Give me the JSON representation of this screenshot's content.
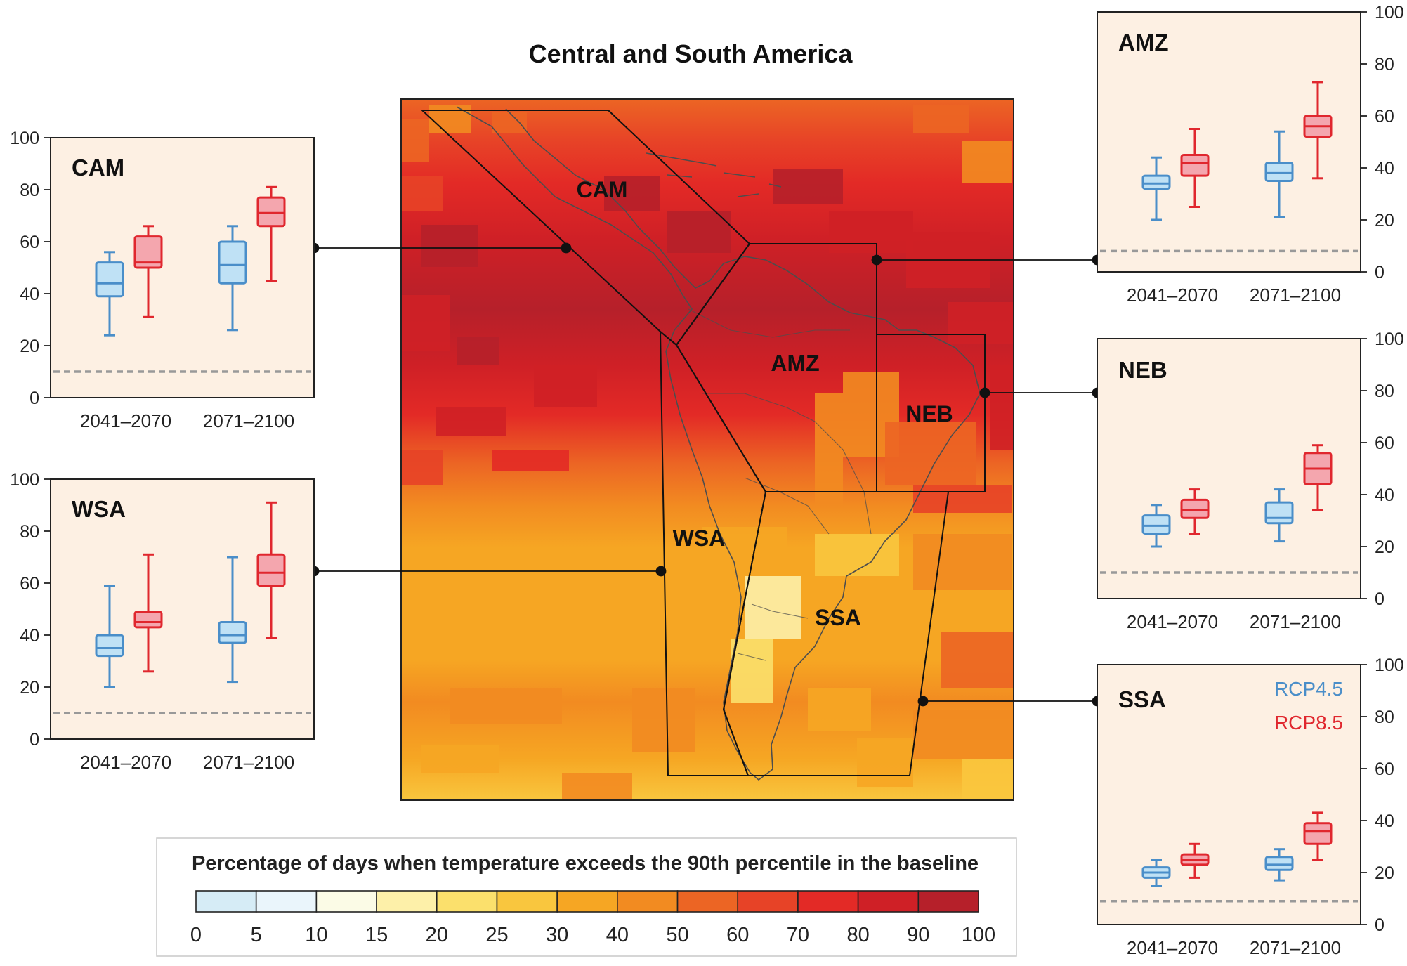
{
  "title": "Central and South America",
  "colorbar": {
    "title": "Percentage of days when temperature exceeds the 90th percentile in the baseline",
    "ticks": [
      "0",
      "5",
      "10",
      "15",
      "20",
      "25",
      "30",
      "40",
      "50",
      "60",
      "70",
      "80",
      "90",
      "100"
    ],
    "colors": [
      "#d6ecf6",
      "#eaf5fb",
      "#fbfbe6",
      "#fdf0a9",
      "#fbe06c",
      "#f9c63e",
      "#f6a623",
      "#f28b21",
      "#ec6524",
      "#e74327",
      "#e32a26",
      "#cf2026",
      "#b6202a"
    ]
  },
  "legend": {
    "rcp45": "RCP4.5",
    "rcp85": "RCP8.5"
  },
  "colors": {
    "rcp45": "#4a8ec9",
    "rcp45_fill": "#bfe1f5",
    "rcp85": "#e0272e",
    "rcp85_fill": "#f4a6ae",
    "panel_bg": "#fdf0e3",
    "baseline": "#999999"
  },
  "chart_data": [
    {
      "type": "box",
      "region": "CAM",
      "categories": [
        "2041–2070",
        "2071–2100"
      ],
      "ylim": [
        0,
        100
      ],
      "yticks": [
        "0",
        "20",
        "40",
        "60",
        "80",
        "100"
      ],
      "baseline": 10,
      "series": [
        {
          "name": "RCP4.5",
          "boxes": [
            {
              "min": 24,
              "q1": 39,
              "median": 44,
              "q3": 52,
              "max": 56
            },
            {
              "min": 26,
              "q1": 44,
              "median": 51,
              "q3": 60,
              "max": 66
            }
          ]
        },
        {
          "name": "RCP8.5",
          "boxes": [
            {
              "min": 31,
              "q1": 50,
              "median": 52,
              "q3": 62,
              "max": 66
            },
            {
              "min": 45,
              "q1": 66,
              "median": 71,
              "q3": 77,
              "max": 81
            }
          ]
        }
      ]
    },
    {
      "type": "box",
      "region": "WSA",
      "categories": [
        "2041–2070",
        "2071–2100"
      ],
      "ylim": [
        0,
        100
      ],
      "yticks": [
        "0",
        "20",
        "40",
        "60",
        "80",
        "100"
      ],
      "baseline": 10,
      "series": [
        {
          "name": "RCP4.5",
          "boxes": [
            {
              "min": 20,
              "q1": 32,
              "median": 35,
              "q3": 40,
              "max": 59
            },
            {
              "min": 22,
              "q1": 37,
              "median": 40,
              "q3": 45,
              "max": 70
            }
          ]
        },
        {
          "name": "RCP8.5",
          "boxes": [
            {
              "min": 26,
              "q1": 43,
              "median": 45,
              "q3": 49,
              "max": 71
            },
            {
              "min": 39,
              "q1": 59,
              "median": 64,
              "q3": 71,
              "max": 91
            }
          ]
        }
      ]
    },
    {
      "type": "box",
      "region": "AMZ",
      "categories": [
        "2041–2070",
        "2071–2100"
      ],
      "ylim": [
        0,
        100
      ],
      "yticks": [
        "0",
        "20",
        "40",
        "60",
        "80",
        "100"
      ],
      "baseline": 8,
      "series": [
        {
          "name": "RCP4.5",
          "boxes": [
            {
              "min": 20,
              "q1": 32,
              "median": 34,
              "q3": 37,
              "max": 44
            },
            {
              "min": 21,
              "q1": 35,
              "median": 38,
              "q3": 42,
              "max": 54
            }
          ]
        },
        {
          "name": "RCP8.5",
          "boxes": [
            {
              "min": 25,
              "q1": 37,
              "median": 42,
              "q3": 45,
              "max": 55
            },
            {
              "min": 36,
              "q1": 52,
              "median": 56,
              "q3": 60,
              "max": 73
            }
          ]
        }
      ]
    },
    {
      "type": "box",
      "region": "NEB",
      "categories": [
        "2041–2070",
        "2071–2100"
      ],
      "ylim": [
        0,
        100
      ],
      "yticks": [
        "0",
        "20",
        "40",
        "60",
        "80",
        "100"
      ],
      "baseline": 10,
      "series": [
        {
          "name": "RCP4.5",
          "boxes": [
            {
              "min": 20,
              "q1": 25,
              "median": 28,
              "q3": 32,
              "max": 36
            },
            {
              "min": 22,
              "q1": 29,
              "median": 31,
              "q3": 37,
              "max": 42
            }
          ]
        },
        {
          "name": "RCP8.5",
          "boxes": [
            {
              "min": 25,
              "q1": 31,
              "median": 34,
              "q3": 38,
              "max": 42
            },
            {
              "min": 34,
              "q1": 44,
              "median": 50,
              "q3": 56,
              "max": 59
            }
          ]
        }
      ]
    },
    {
      "type": "box",
      "region": "SSA",
      "categories": [
        "2041–2070",
        "2071–2100"
      ],
      "ylim": [
        0,
        100
      ],
      "yticks": [
        "0",
        "20",
        "40",
        "60",
        "80",
        "100"
      ],
      "baseline": 9,
      "series": [
        {
          "name": "RCP4.5",
          "boxes": [
            {
              "min": 15,
              "q1": 18,
              "median": 20,
              "q3": 22,
              "max": 25
            },
            {
              "min": 17,
              "q1": 21,
              "median": 23,
              "q3": 26,
              "max": 29
            }
          ]
        },
        {
          "name": "RCP8.5",
          "boxes": [
            {
              "min": 18,
              "q1": 23,
              "median": 25,
              "q3": 27,
              "max": 31
            },
            {
              "min": 25,
              "q1": 31,
              "median": 36,
              "q3": 39,
              "max": 43
            }
          ]
        }
      ]
    }
  ]
}
